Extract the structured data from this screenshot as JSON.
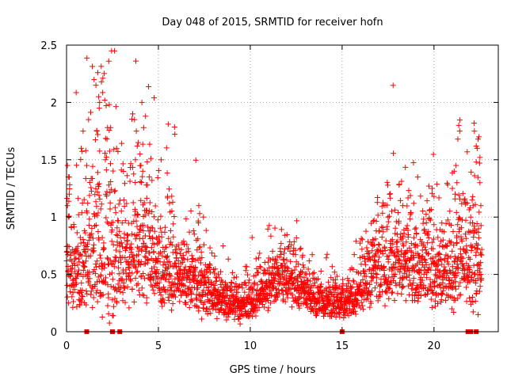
{
  "chart_data": {
    "type": "scatter",
    "title": "Day 048 of 2015, SRMTID for receiver hofn",
    "xlabel": "GPS time / hours",
    "ylabel": "SRMTID / TECUs",
    "xlim": [
      0,
      23.5
    ],
    "ylim": [
      0,
      2.5
    ],
    "x_ticks": [
      0,
      5,
      10,
      15,
      20
    ],
    "y_ticks": [
      0,
      0.5,
      1,
      1.5,
      2,
      2.5
    ],
    "x_tick_labels": [
      "0",
      "5",
      "10",
      "15",
      "20"
    ],
    "y_tick_labels": [
      "0",
      "0.5",
      "1",
      "1.5",
      "2",
      "2.5"
    ],
    "grid": true,
    "marker": "+",
    "color": "#ff0000",
    "series": [
      {
        "name": "SRMTID",
        "profile": [
          [
            0.0,
            0.62,
            0.3
          ],
          [
            0.5,
            0.55,
            0.3
          ],
          [
            1.0,
            0.62,
            0.38
          ],
          [
            1.5,
            0.72,
            0.42
          ],
          [
            2.0,
            0.7,
            0.45
          ],
          [
            2.5,
            0.6,
            0.42
          ],
          [
            3.0,
            0.62,
            0.38
          ],
          [
            3.5,
            0.72,
            0.35
          ],
          [
            4.0,
            0.85,
            0.42
          ],
          [
            4.5,
            0.72,
            0.38
          ],
          [
            5.0,
            0.6,
            0.32
          ],
          [
            5.5,
            0.55,
            0.28
          ],
          [
            6.0,
            0.52,
            0.25
          ],
          [
            6.5,
            0.5,
            0.22
          ],
          [
            7.0,
            0.45,
            0.2
          ],
          [
            7.5,
            0.38,
            0.16
          ],
          [
            8.0,
            0.32,
            0.13
          ],
          [
            8.5,
            0.28,
            0.11
          ],
          [
            9.0,
            0.25,
            0.1
          ],
          [
            9.5,
            0.24,
            0.1
          ],
          [
            10.0,
            0.27,
            0.11
          ],
          [
            10.5,
            0.32,
            0.13
          ],
          [
            11.0,
            0.4,
            0.15
          ],
          [
            11.5,
            0.48,
            0.17
          ],
          [
            12.0,
            0.52,
            0.18
          ],
          [
            12.5,
            0.45,
            0.16
          ],
          [
            13.0,
            0.35,
            0.13
          ],
          [
            13.5,
            0.3,
            0.12
          ],
          [
            14.0,
            0.27,
            0.1
          ],
          [
            14.5,
            0.25,
            0.1
          ],
          [
            15.0,
            0.25,
            0.1
          ],
          [
            15.5,
            0.3,
            0.12
          ],
          [
            16.0,
            0.36,
            0.15
          ],
          [
            16.5,
            0.48,
            0.2
          ],
          [
            17.0,
            0.6,
            0.25
          ],
          [
            17.5,
            0.66,
            0.27
          ],
          [
            18.0,
            0.64,
            0.27
          ],
          [
            18.5,
            0.62,
            0.27
          ],
          [
            19.0,
            0.57,
            0.25
          ],
          [
            19.5,
            0.58,
            0.25
          ],
          [
            20.0,
            0.6,
            0.25
          ],
          [
            20.5,
            0.56,
            0.23
          ],
          [
            21.0,
            0.6,
            0.27
          ],
          [
            21.5,
            0.68,
            0.3
          ],
          [
            22.0,
            0.65,
            0.32
          ],
          [
            22.5,
            0.62,
            0.3
          ]
        ],
        "x_range": [
          0.0,
          22.6
        ],
        "count": 2700,
        "seed": 48,
        "highlights": [
          [
            0.05,
            1.45
          ],
          [
            0.1,
            1.35
          ],
          [
            0.15,
            1.2
          ],
          [
            0.05,
            1.1
          ],
          [
            0.12,
            1.0
          ],
          [
            0.8,
            1.6
          ],
          [
            0.9,
            1.75
          ],
          [
            1.05,
            1.58
          ],
          [
            1.2,
            1.85
          ],
          [
            1.1,
            1.45
          ],
          [
            1.5,
            2.2
          ],
          [
            1.6,
            2.15
          ],
          [
            1.7,
            2.26
          ],
          [
            1.75,
            2.05
          ],
          [
            1.8,
            2.0
          ],
          [
            1.78,
            1.95
          ],
          [
            1.65,
            1.75
          ],
          [
            1.7,
            1.72
          ],
          [
            1.9,
            2.18
          ],
          [
            2.3,
            2.36
          ],
          [
            2.4,
            1.78
          ],
          [
            3.6,
            1.9
          ],
          [
            3.7,
            1.85
          ],
          [
            3.8,
            1.75
          ],
          [
            3.85,
            1.62
          ],
          [
            3.9,
            1.65
          ],
          [
            4.1,
            2.0
          ],
          [
            4.3,
            1.88
          ],
          [
            4.2,
            1.78
          ],
          [
            4.0,
            1.55
          ],
          [
            4.05,
            1.45
          ],
          [
            3.75,
            1.5
          ],
          [
            4.15,
            1.4
          ],
          [
            4.5,
            1.35
          ],
          [
            4.65,
            1.32
          ],
          [
            4.4,
            1.28
          ],
          [
            5.5,
            1.18
          ],
          [
            5.6,
            1.12
          ],
          [
            7.2,
            1.1
          ],
          [
            7.45,
            1.0
          ],
          [
            17.5,
            1.0
          ],
          [
            17.7,
            1.05
          ],
          [
            18.3,
            1.1
          ],
          [
            18.9,
            1.12
          ],
          [
            19.9,
            1.25
          ],
          [
            20.0,
            1.18
          ],
          [
            21.0,
            1.25
          ],
          [
            21.1,
            1.4
          ],
          [
            21.2,
            1.45
          ],
          [
            21.25,
            1.3
          ],
          [
            21.35,
            1.8
          ],
          [
            21.4,
            1.75
          ],
          [
            21.3,
            1.68
          ],
          [
            21.15,
            1.2
          ],
          [
            22.2,
            1.75
          ],
          [
            22.3,
            1.62
          ],
          [
            22.35,
            1.6
          ],
          [
            22.4,
            1.68
          ],
          [
            22.45,
            1.7
          ],
          [
            22.3,
            1.48
          ],
          [
            22.5,
            1.3
          ],
          [
            22.55,
            1.1
          ],
          [
            22.0,
            1.0
          ],
          [
            22.1,
            0.95
          ]
        ],
        "zero_values": [
          1.1,
          2.5,
          2.9,
          15.0,
          21.85,
          22.0,
          22.3
        ]
      }
    ]
  }
}
